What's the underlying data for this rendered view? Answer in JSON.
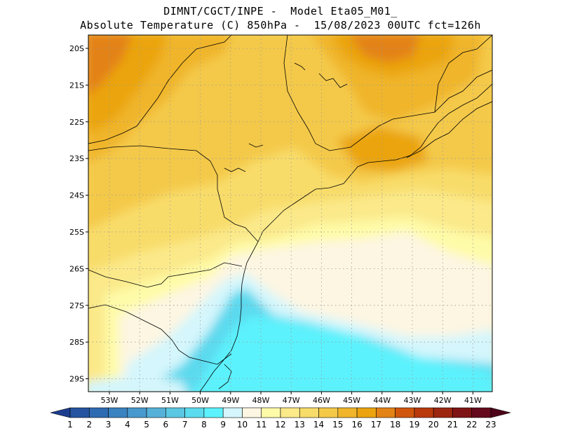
{
  "header": {
    "line1": "DIMNT/CGCT/INPE -  Model Eta05_M01_",
    "line2": "Absolute Temperature (C) 850hPa -  15/08/2023 00UTC fct=126h"
  },
  "map": {
    "lat_labels": [
      "20S",
      "21S",
      "22S",
      "23S",
      "24S",
      "25S",
      "26S",
      "27S",
      "28S",
      "29S"
    ],
    "lon_labels": [
      "53W",
      "52W",
      "51W",
      "50W",
      "49W",
      "48W",
      "47W",
      "46W",
      "45W",
      "44W",
      "43W",
      "42W",
      "41W"
    ],
    "grid": "dotted",
    "colors": {
      "t10": "#d4f6fc",
      "t11": "#fdf6e2",
      "t12": "#fefba8",
      "t13": "#fbe98a",
      "t14": "#f8dc6a",
      "t15": "#f4c948",
      "t16": "#f0b52a",
      "t17": "#eba40f",
      "t18": "#e38215",
      "t19": "#d1560d",
      "t9": "#5cf2fd",
      "t8": "#5bd9ee"
    }
  },
  "colorbar": {
    "labels": [
      "1",
      "2",
      "3",
      "4",
      "5",
      "6",
      "7",
      "8",
      "9",
      "10",
      "11",
      "12",
      "13",
      "14",
      "15",
      "16",
      "17",
      "18",
      "19",
      "20",
      "21",
      "22",
      "23"
    ],
    "colors": [
      "#1c3d8f",
      "#2654a0",
      "#2f6bb2",
      "#3a82c0",
      "#4899cd",
      "#56b1d8",
      "#5bc7e2",
      "#5bdcee",
      "#5cf2fd",
      "#d4f6fc",
      "#fdf6e2",
      "#fefba8",
      "#fbe98a",
      "#f8dc6a",
      "#f4c948",
      "#f0b52a",
      "#eba40f",
      "#e38215",
      "#d1560d",
      "#b9390c",
      "#9c2610",
      "#7f1414",
      "#650a1c",
      "#4d0418"
    ]
  }
}
